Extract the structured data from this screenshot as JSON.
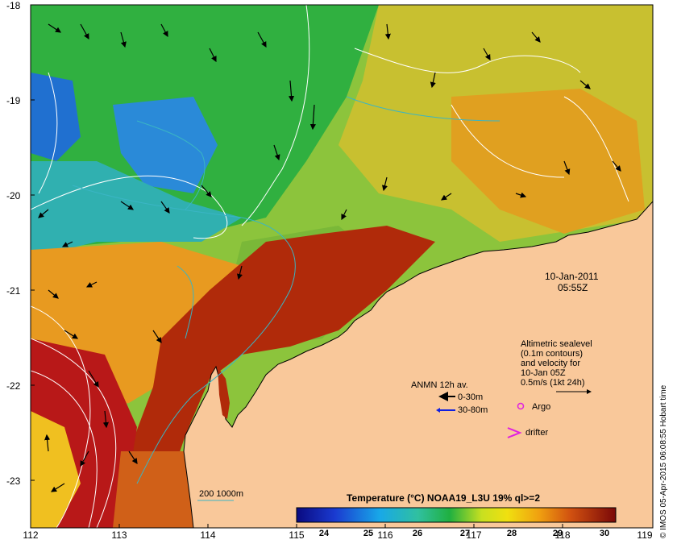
{
  "map": {
    "date": "10-Jan-2011",
    "time": "05:55Z",
    "y_axis_labels": [
      "-18",
      "-19",
      "-20",
      "-21",
      "-22",
      "-23"
    ],
    "x_axis_labels": [
      "112",
      "113",
      "114",
      "115",
      "116",
      "117",
      "118",
      "119"
    ],
    "lat_range": [
      -23.6,
      -18
    ],
    "lon_range": [
      112,
      119
    ],
    "colors": {
      "land": "#f9c89a",
      "sst_cold": "#0a2a9c",
      "sst_warm": "#8c0a0a",
      "contour": "#ffffff",
      "isobath": "#3ab5c4",
      "argo": "#e020e0"
    }
  },
  "legend": {
    "altimetric": [
      "Altimetric sealevel",
      "(0.1m contours)",
      "and velocity for",
      "10-Jan 05Z",
      "0.5m/s (1kt 24h)"
    ],
    "anmn_title": "ANMN 12h av.",
    "anmn_items": [
      {
        "label": "0-30m",
        "color": "#000000"
      },
      {
        "label": "30-80m",
        "color": "#1020e0"
      }
    ],
    "argo_label": "Argo",
    "drifter_label": "drifter",
    "isobath_label": "200  1000m"
  },
  "colorbar": {
    "title": "Temperature (°C) NOAA19_L3U 19% ql>=2",
    "ticks": [
      "24",
      "25",
      "26",
      "27",
      "28",
      "29",
      "30"
    ]
  },
  "credit": "© IMOS 05-Apr-2015 06:08:55 Hobart time"
}
